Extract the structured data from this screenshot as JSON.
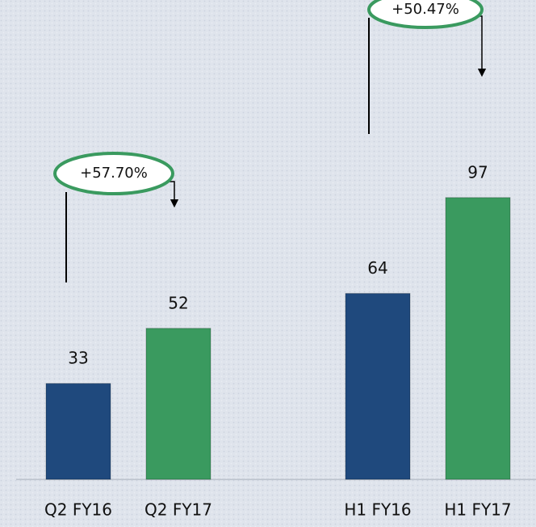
{
  "chart_data": {
    "type": "bar",
    "categories": [
      "Q2 FY16",
      "Q2 FY17",
      "H1 FY16",
      "H1 FY17"
    ],
    "values": [
      33,
      52,
      64,
      97
    ],
    "colors": [
      "#1f497d",
      "#3a9a5f",
      "#1f497d",
      "#3a9a5f"
    ],
    "annotations": [
      "+57.70%",
      "+50.47%"
    ]
  }
}
